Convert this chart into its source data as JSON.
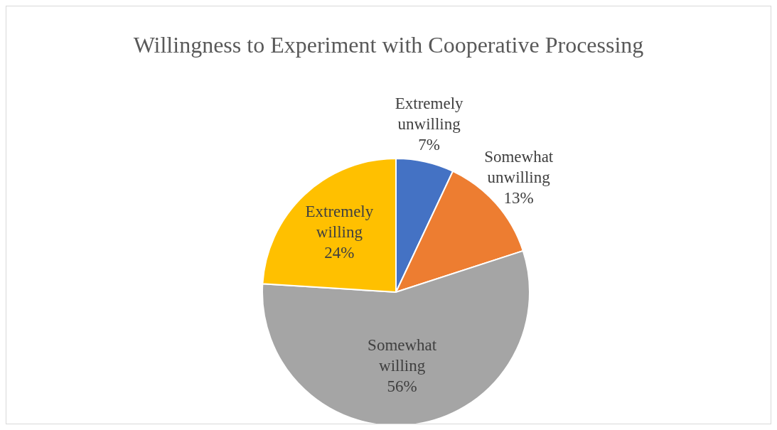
{
  "chart_data": {
    "type": "pie",
    "title": "Willingness to Experiment with Cooperative Processing",
    "categories": [
      "Extremely unwilling",
      "Somewhat unwilling",
      "Somewhat willing",
      "Extremely willing"
    ],
    "values": [
      7,
      13,
      56,
      24
    ],
    "colors": [
      "#4472c4",
      "#ed7d31",
      "#a5a5a5",
      "#ffc000"
    ],
    "value_labels": [
      "7%",
      "13%",
      "56%",
      "24%"
    ],
    "legend": false
  }
}
